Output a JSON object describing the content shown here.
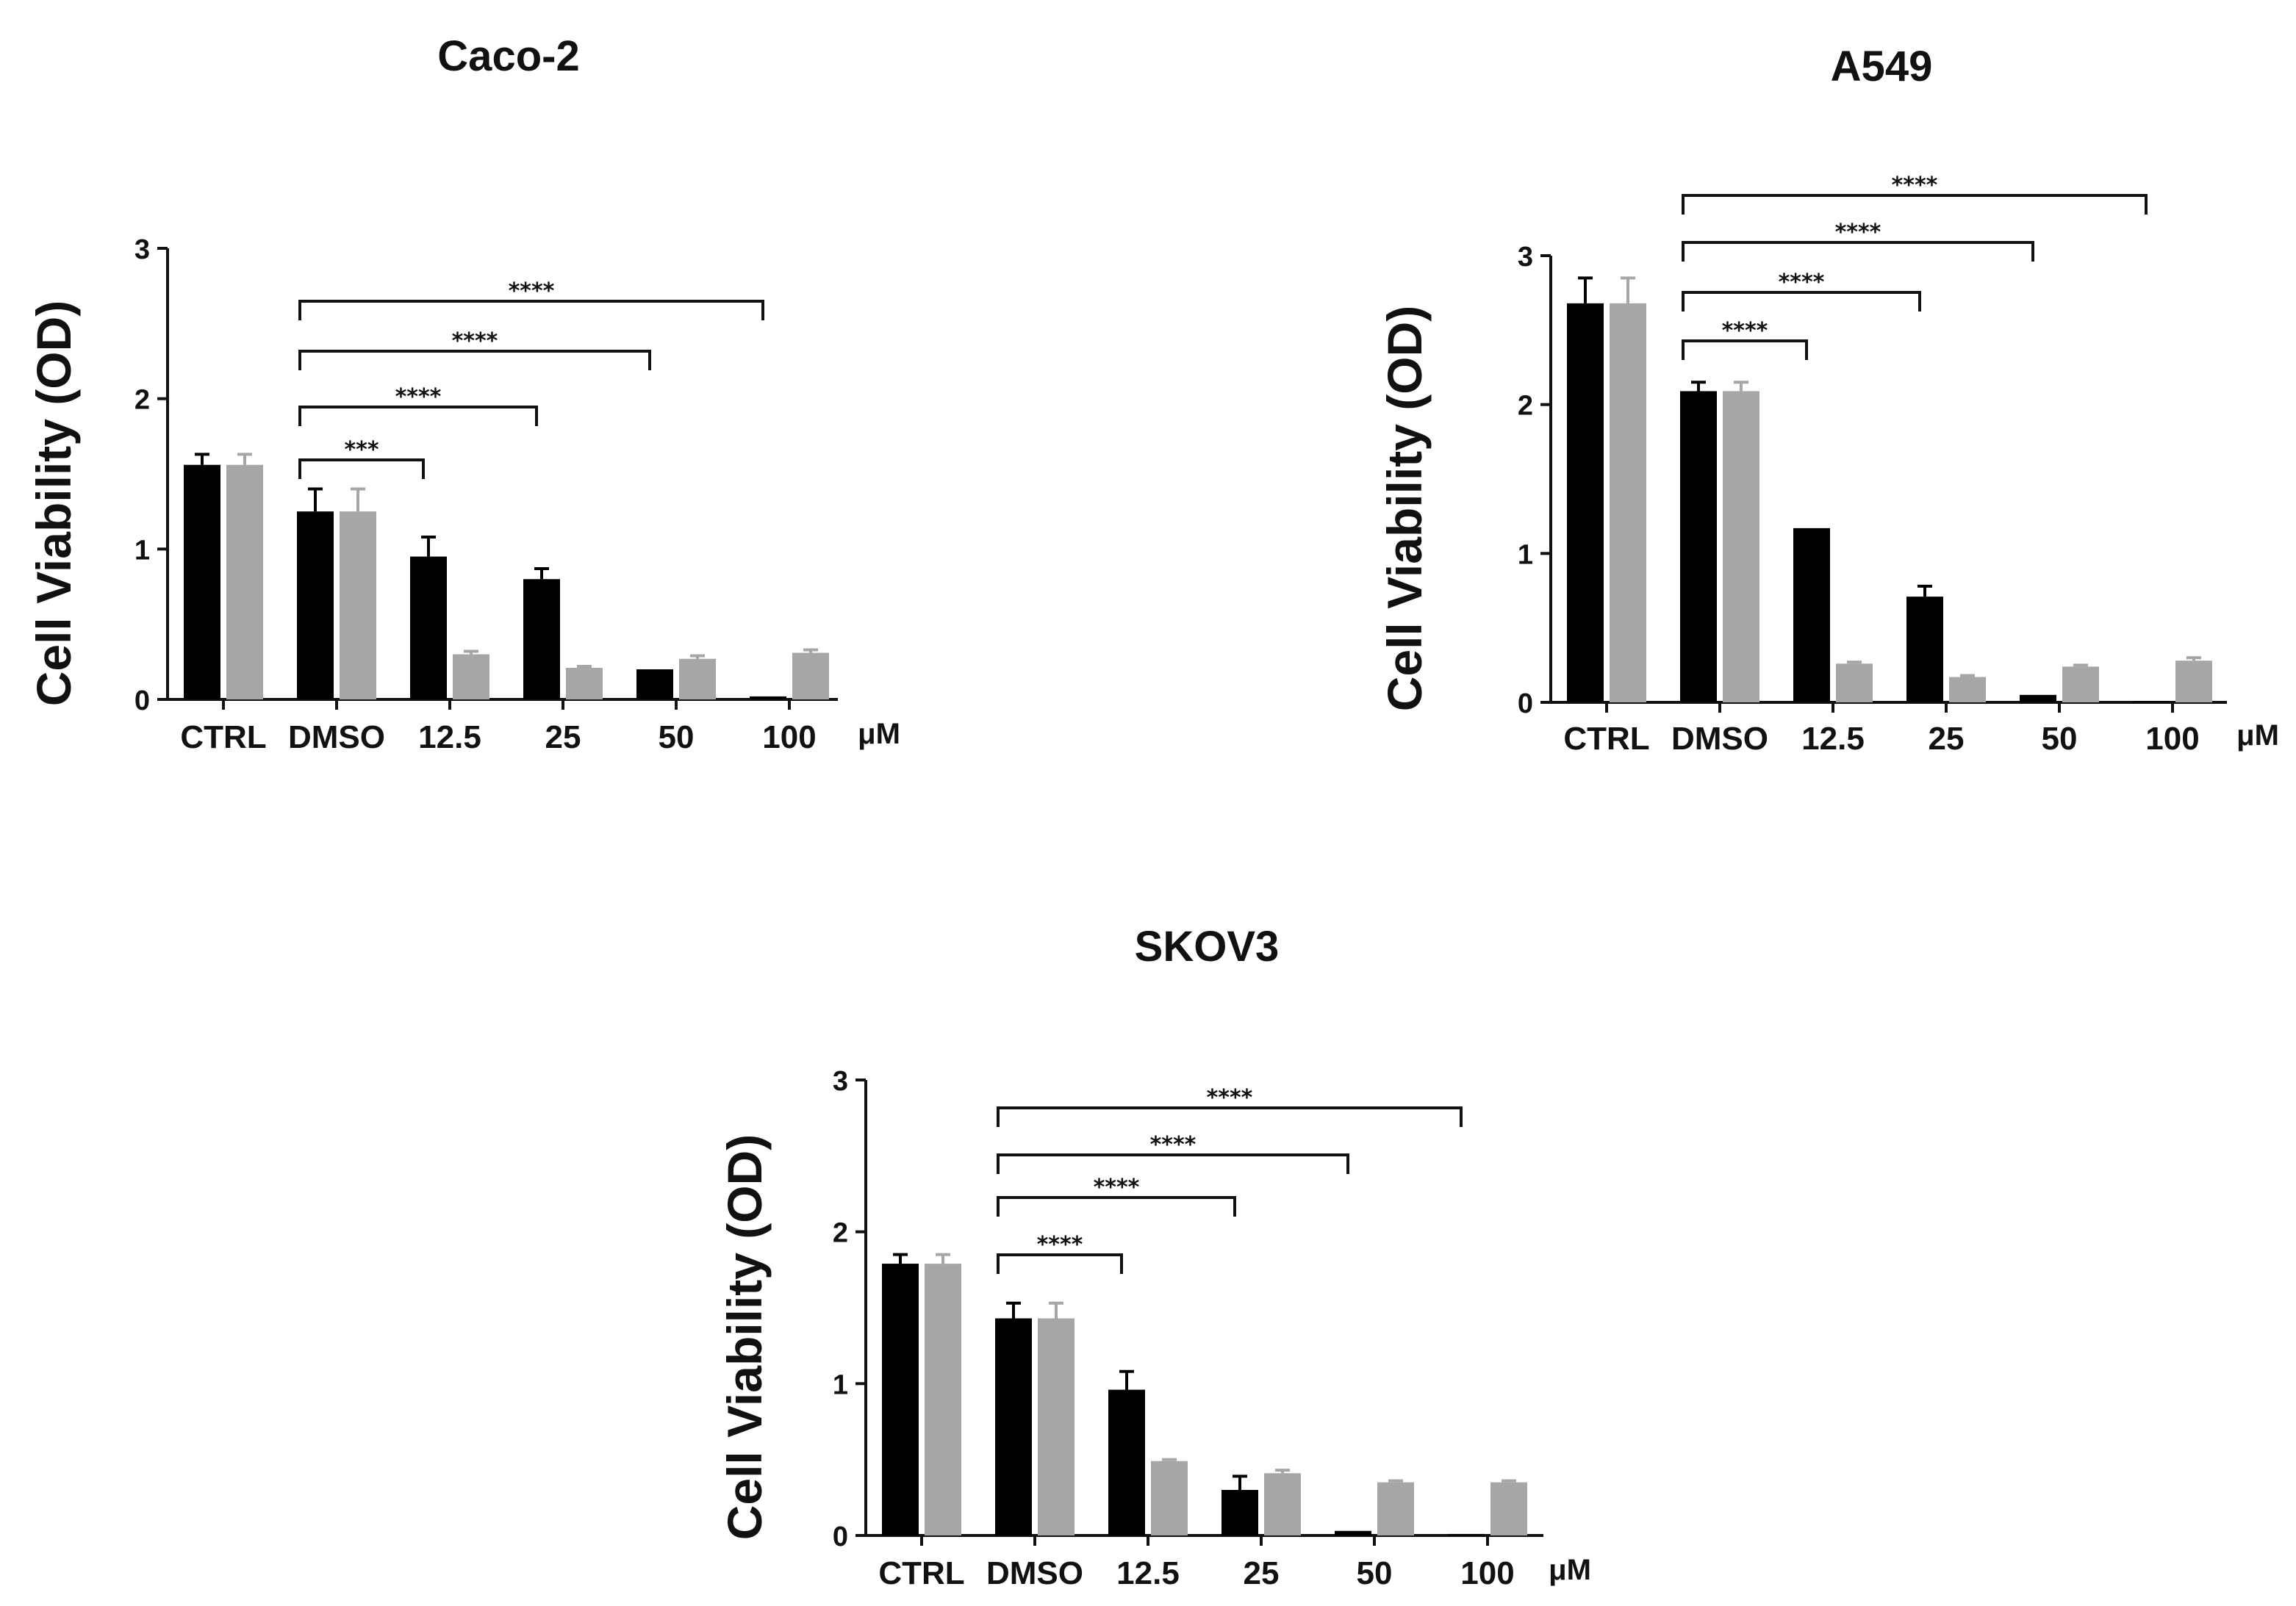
{
  "colors": {
    "treated": "#000000",
    "control": "#a6a6a6",
    "axis": "#111111"
  },
  "chart_data": [
    {
      "type": "bar",
      "title": "Caco-2",
      "xlabel": "",
      "ylabel": "Cell Viability (OD)",
      "unit": "μM",
      "ylim": [
        0,
        3
      ],
      "yticks": [
        0,
        1,
        2,
        3
      ],
      "categories": [
        "CTRL",
        "DMSO",
        "12.5",
        "25",
        "50",
        "100"
      ],
      "series": [
        {
          "name": "black",
          "values": [
            1.56,
            1.25,
            0.95,
            0.8,
            0.2,
            0.02
          ],
          "errors": [
            0.07,
            0.15,
            0.13,
            0.07,
            0.0,
            0.0
          ]
        },
        {
          "name": "grey",
          "values": [
            1.56,
            1.25,
            0.3,
            0.21,
            0.27,
            0.31
          ],
          "errors": [
            0.07,
            0.15,
            0.02,
            0.01,
            0.02,
            0.02
          ]
        }
      ],
      "annotations": [
        {
          "from": "DMSO",
          "to": "12.5",
          "label": "***"
        },
        {
          "from": "DMSO",
          "to": "25",
          "label": "****"
        },
        {
          "from": "DMSO",
          "to": "50",
          "label": "****"
        },
        {
          "from": "DMSO",
          "to": "100",
          "label": "****"
        }
      ]
    },
    {
      "type": "bar",
      "title": "A549",
      "xlabel": "",
      "ylabel": "Cell Viability (OD)",
      "unit": "μM",
      "ylim": [
        0,
        3
      ],
      "yticks": [
        0,
        1,
        2,
        3
      ],
      "categories": [
        "CTRL",
        "DMSO",
        "12.5",
        "25",
        "50",
        "100"
      ],
      "series": [
        {
          "name": "black",
          "values": [
            2.68,
            2.09,
            1.17,
            0.71,
            0.05,
            0.0
          ],
          "errors": [
            0.17,
            0.06,
            0.0,
            0.07,
            0.0,
            0.0
          ]
        },
        {
          "name": "grey",
          "values": [
            2.68,
            2.09,
            0.26,
            0.17,
            0.24,
            0.28
          ],
          "errors": [
            0.17,
            0.06,
            0.01,
            0.01,
            0.01,
            0.02
          ]
        }
      ],
      "annotations": [
        {
          "from": "DMSO",
          "to": "12.5",
          "label": "****"
        },
        {
          "from": "DMSO",
          "to": "25",
          "label": "****"
        },
        {
          "from": "DMSO",
          "to": "50",
          "label": "****"
        },
        {
          "from": "DMSO",
          "to": "100",
          "label": "****"
        }
      ]
    },
    {
      "type": "bar",
      "title": "SKOV3",
      "xlabel": "",
      "ylabel": "Cell Viability (OD)",
      "unit": "μM",
      "ylim": [
        0,
        3
      ],
      "yticks": [
        0,
        1,
        2,
        3
      ],
      "categories": [
        "CTRL",
        "DMSO",
        "12.5",
        "25",
        "50",
        "100"
      ],
      "series": [
        {
          "name": "black",
          "values": [
            1.79,
            1.43,
            0.96,
            0.3,
            0.03,
            0.01
          ],
          "errors": [
            0.06,
            0.1,
            0.12,
            0.09,
            0.0,
            0.0
          ]
        },
        {
          "name": "grey",
          "values": [
            1.79,
            1.43,
            0.49,
            0.41,
            0.35,
            0.35
          ],
          "errors": [
            0.06,
            0.1,
            0.01,
            0.02,
            0.01,
            0.01
          ]
        }
      ],
      "annotations": [
        {
          "from": "DMSO",
          "to": "12.5",
          "label": "****"
        },
        {
          "from": "DMSO",
          "to": "25",
          "label": "****"
        },
        {
          "from": "DMSO",
          "to": "50",
          "label": "****"
        },
        {
          "from": "DMSO",
          "to": "100",
          "label": "****"
        }
      ]
    }
  ]
}
